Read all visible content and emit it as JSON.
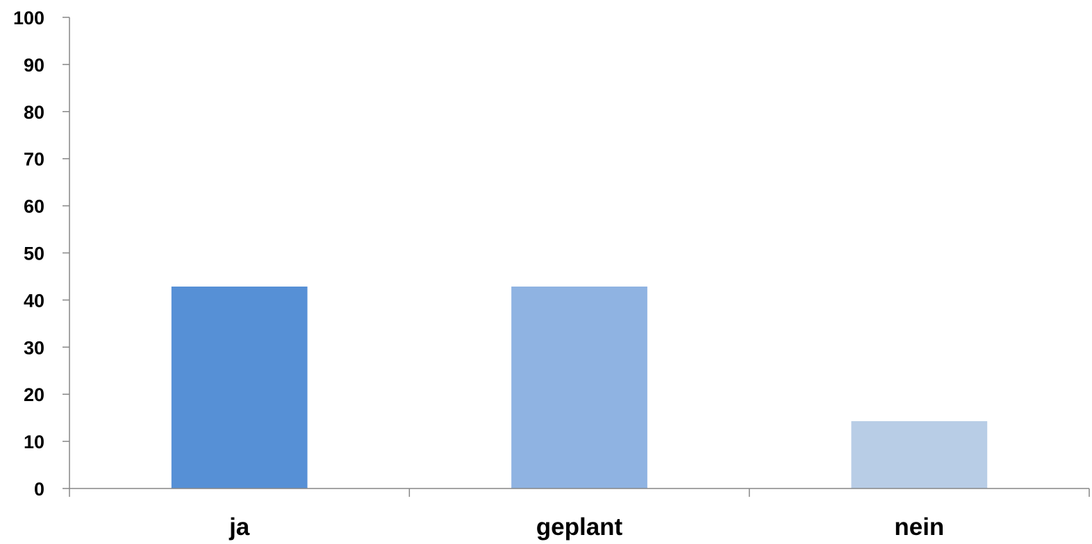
{
  "chart_data": {
    "type": "bar",
    "categories": [
      "ja",
      "geplant",
      "nein"
    ],
    "values": [
      42.86,
      42.86,
      14.29
    ],
    "bar_colors": [
      "#5690d6",
      "#8fb3e2",
      "#b8cde6"
    ],
    "ylim": [
      0,
      100
    ],
    "yticks": [
      0,
      10,
      20,
      30,
      40,
      50,
      60,
      70,
      80,
      90,
      100
    ],
    "ytick_labels": [
      "0",
      "10",
      "20",
      "30",
      "40",
      "50",
      "60",
      "70",
      "80",
      "90",
      "100"
    ],
    "axis_color": "#868686",
    "grid": false,
    "legend": "none",
    "title": "",
    "xlabel": "",
    "ylabel": ""
  }
}
